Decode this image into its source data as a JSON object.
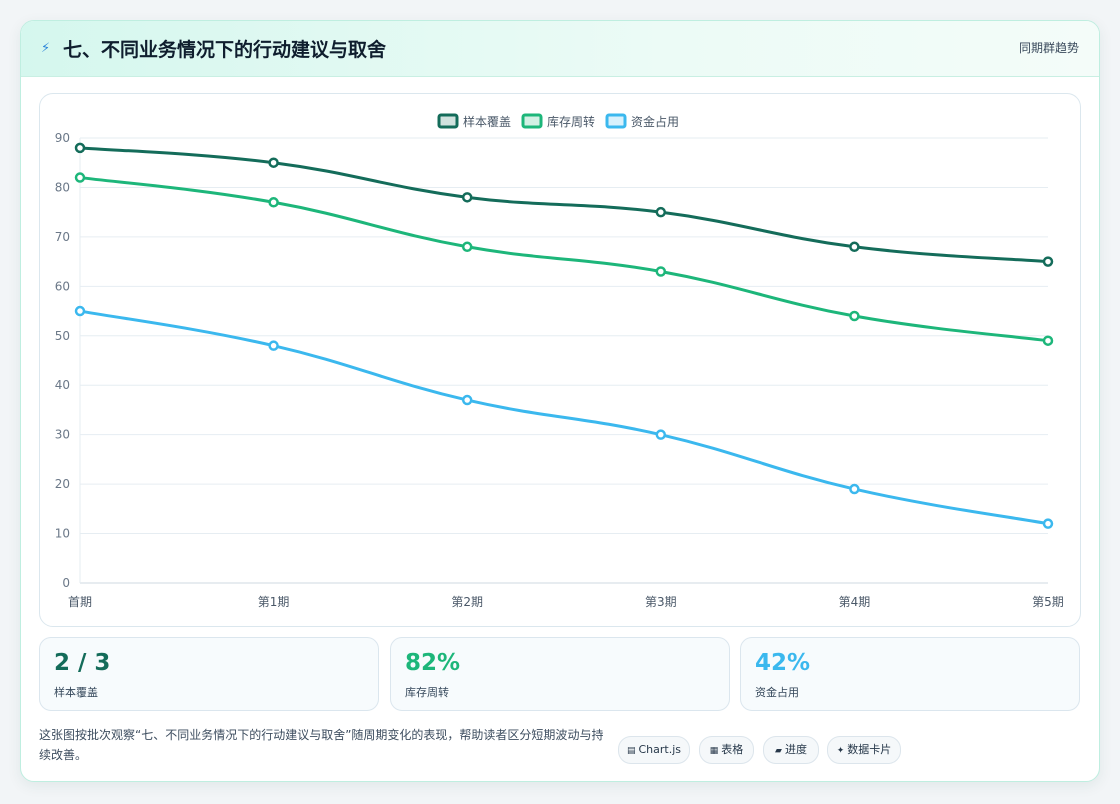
{
  "header": {
    "icon": "lightning-icon",
    "title": "七、不同业务情况下的行动建议与取舍",
    "tag": "同期群趋势"
  },
  "chart_data": {
    "type": "line",
    "categories": [
      "首期",
      "第1期",
      "第2期",
      "第3期",
      "第4期",
      "第5期"
    ],
    "series": [
      {
        "name": "样本覆盖",
        "values": [
          88,
          85,
          78,
          75,
          68,
          65
        ],
        "color": "#146c5a"
      },
      {
        "name": "库存周转",
        "values": [
          82,
          77,
          68,
          63,
          54,
          49
        ],
        "color": "#1db67a"
      },
      {
        "name": "资金占用",
        "values": [
          55,
          48,
          37,
          30,
          19,
          12
        ],
        "color": "#3bb8ee"
      }
    ],
    "ylim": [
      0,
      90
    ],
    "yticks": [
      0,
      10,
      20,
      30,
      40,
      50,
      60,
      70,
      80,
      90
    ],
    "legend": "top-center",
    "grid": true
  },
  "stats": [
    {
      "value": "2 / 3",
      "label": "样本覆盖",
      "color": "#146c5a"
    },
    {
      "value": "82%",
      "label": "库存周转",
      "color": "#1db67a"
    },
    {
      "value": "42%",
      "label": "资金占用",
      "color": "#3bb8ee"
    }
  ],
  "description": "这张图按批次观察“七、不同业务情况下的行动建议与取舍”随周期变化的表现，帮助读者区分短期波动与持续改善。",
  "pills": [
    {
      "icon": "▤",
      "label": "Chart.js"
    },
    {
      "icon": "▦",
      "label": "表格"
    },
    {
      "icon": "▰",
      "label": "进度"
    },
    {
      "icon": "✦",
      "label": "数据卡片"
    }
  ]
}
